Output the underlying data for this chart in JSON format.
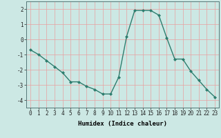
{
  "x": [
    0,
    1,
    2,
    3,
    4,
    5,
    6,
    7,
    8,
    9,
    10,
    11,
    12,
    13,
    14,
    15,
    16,
    17,
    18,
    19,
    20,
    21,
    22,
    23
  ],
  "y": [
    -0.7,
    -1.0,
    -1.4,
    -1.8,
    -2.2,
    -2.8,
    -2.8,
    -3.1,
    -3.3,
    -3.6,
    -3.6,
    -2.5,
    0.2,
    1.9,
    1.9,
    1.9,
    1.6,
    0.1,
    -1.3,
    -1.3,
    -2.1,
    -2.7,
    -3.3,
    -3.8
  ],
  "line_color": "#2e7d6e",
  "marker": "D",
  "marker_size": 2,
  "bg_color": "#cce8e4",
  "grid_color": "#e8a0a0",
  "xlabel": "Humidex (Indice chaleur)",
  "xlim": [
    -0.5,
    23.5
  ],
  "ylim": [
    -4.5,
    2.5
  ],
  "yticks": [
    -4,
    -3,
    -2,
    -1,
    0,
    1,
    2
  ],
  "xticks": [
    0,
    1,
    2,
    3,
    4,
    5,
    6,
    7,
    8,
    9,
    10,
    11,
    12,
    13,
    14,
    15,
    16,
    17,
    18,
    19,
    20,
    21,
    22,
    23
  ],
  "xtick_labels": [
    "0",
    "1",
    "2",
    "3",
    "4",
    "5",
    "6",
    "7",
    "8",
    "9",
    "10",
    "11",
    "12",
    "13",
    "14",
    "15",
    "16",
    "17",
    "18",
    "19",
    "20",
    "21",
    "22",
    "23"
  ],
  "xlabel_fontsize": 6.5,
  "tick_fontsize": 5.5,
  "linewidth": 1.0
}
